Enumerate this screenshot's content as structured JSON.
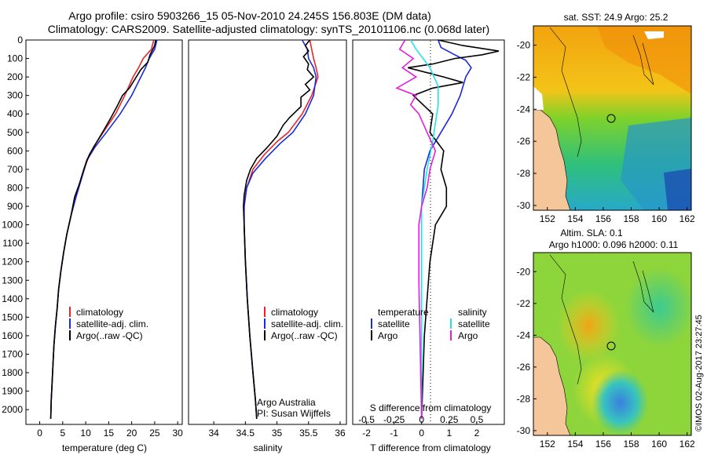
{
  "header": {
    "line1": "Argo profile: csiro 5903266_15 05-Nov-2010 24.245S 156.803E (DM data)",
    "line2": "Climatology: CARS2009. Satellite-adjusted climatology: synTS_20101106.nc (0.068d later)"
  },
  "colors": {
    "clim": "#e8242a",
    "sat": "#1c2bd8",
    "argo": "#000000",
    "sal_sat": "#22e3e8",
    "sal_argo": "#e61ce0"
  },
  "chart_data": [
    {
      "id": "temperature",
      "type": "line",
      "xlabel": "temperature (deg C)",
      "ylabel": "",
      "xlim": [
        -3,
        31
      ],
      "ylim": [
        2080,
        0
      ],
      "xticks": [
        0,
        5,
        10,
        15,
        20,
        25,
        30
      ],
      "yticks": [
        0,
        100,
        200,
        300,
        400,
        500,
        600,
        700,
        800,
        900,
        1000,
        1100,
        1200,
        1300,
        1400,
        1500,
        1600,
        1700,
        1800,
        1900,
        2000
      ],
      "legend": [
        "climatology",
        "satellite-adj. clim.",
        "Argo(..raw -QC)"
      ],
      "series": [
        {
          "name": "climatology",
          "color": "clim",
          "points": [
            [
              24.8,
              0
            ],
            [
              24.3,
              50
            ],
            [
              22.5,
              100
            ],
            [
              21.5,
              150
            ],
            [
              20.3,
              200
            ],
            [
              18.5,
              300
            ],
            [
              16.5,
              400
            ],
            [
              13.8,
              500
            ],
            [
              11.7,
              580
            ],
            [
              10.2,
              650
            ],
            [
              9.0,
              750
            ],
            [
              7.8,
              850
            ],
            [
              6.8,
              950
            ],
            [
              5.9,
              1050
            ],
            [
              5.2,
              1150
            ],
            [
              4.6,
              1250
            ],
            [
              4.1,
              1350
            ],
            [
              3.8,
              1450
            ],
            [
              3.4,
              1550
            ],
            [
              3.1,
              1650
            ],
            [
              2.9,
              1750
            ],
            [
              2.7,
              1850
            ],
            [
              2.5,
              1950
            ],
            [
              2.4,
              2050
            ]
          ]
        },
        {
          "name": "satellite-adj. clim.",
          "color": "sat",
          "points": [
            [
              25.5,
              0
            ],
            [
              25.0,
              50
            ],
            [
              23.8,
              100
            ],
            [
              23.0,
              150
            ],
            [
              22.0,
              200
            ],
            [
              20.0,
              300
            ],
            [
              17.5,
              400
            ],
            [
              14.5,
              500
            ],
            [
              12.0,
              580
            ],
            [
              10.3,
              650
            ],
            [
              9.1,
              750
            ],
            [
              7.9,
              850
            ],
            [
              6.8,
              950
            ],
            [
              5.9,
              1050
            ],
            [
              5.2,
              1150
            ],
            [
              4.6,
              1250
            ],
            [
              4.1,
              1350
            ],
            [
              3.8,
              1450
            ],
            [
              3.4,
              1550
            ],
            [
              3.1,
              1650
            ],
            [
              2.9,
              1750
            ],
            [
              2.7,
              1850
            ],
            [
              2.5,
              1950
            ],
            [
              2.4,
              2050
            ]
          ]
        },
        {
          "name": "Argo(..raw -QC)",
          "color": "argo",
          "points": [
            [
              25.2,
              0
            ],
            [
              25.0,
              30
            ],
            [
              24.0,
              80
            ],
            [
              23.5,
              120
            ],
            [
              22.0,
              160
            ],
            [
              21.0,
              200
            ],
            [
              19.5,
              260
            ],
            [
              18.0,
              300
            ],
            [
              16.8,
              360
            ],
            [
              15.5,
              420
            ],
            [
              13.9,
              490
            ],
            [
              12.2,
              560
            ],
            [
              10.8,
              620
            ],
            [
              9.6,
              700
            ],
            [
              8.6,
              780
            ],
            [
              7.6,
              850
            ],
            [
              6.8,
              950
            ],
            [
              5.9,
              1050
            ],
            [
              5.2,
              1150
            ],
            [
              4.6,
              1250
            ],
            [
              4.1,
              1350
            ],
            [
              3.8,
              1450
            ],
            [
              3.4,
              1550
            ],
            [
              3.1,
              1650
            ],
            [
              2.9,
              1750
            ],
            [
              2.7,
              1850
            ],
            [
              2.5,
              1950
            ],
            [
              2.4,
              2050
            ]
          ]
        }
      ]
    },
    {
      "id": "salinity",
      "type": "line",
      "xlabel": "salinity",
      "ylabel": "",
      "xlim": [
        33.6,
        36.1
      ],
      "ylim": [
        2080,
        0
      ],
      "xticks": [
        34,
        34.5,
        35,
        35.5,
        36
      ],
      "legend": [
        "climatology",
        "satellite-adj. clim.",
        "Argo(..raw -QC)"
      ],
      "annotation": [
        "Argo Australia",
        "PI: Susan Wijffels"
      ],
      "series": [
        {
          "name": "climatology",
          "color": "clim",
          "points": [
            [
              35.52,
              0
            ],
            [
              35.55,
              50
            ],
            [
              35.58,
              100
            ],
            [
              35.62,
              150
            ],
            [
              35.65,
              200
            ],
            [
              35.55,
              300
            ],
            [
              35.4,
              400
            ],
            [
              35.18,
              500
            ],
            [
              35.0,
              550
            ],
            [
              34.8,
              620
            ],
            [
              34.62,
              700
            ],
            [
              34.52,
              800
            ],
            [
              34.48,
              900
            ],
            [
              34.48,
              1000
            ],
            [
              34.5,
              1200
            ],
            [
              34.53,
              1400
            ],
            [
              34.57,
              1600
            ],
            [
              34.62,
              1800
            ],
            [
              34.66,
              1950
            ],
            [
              34.68,
              2050
            ]
          ]
        },
        {
          "name": "satellite-adj. clim.",
          "color": "sat",
          "points": [
            [
              35.4,
              0
            ],
            [
              35.48,
              50
            ],
            [
              35.5,
              100
            ],
            [
              35.58,
              150
            ],
            [
              35.62,
              200
            ],
            [
              35.58,
              300
            ],
            [
              35.45,
              400
            ],
            [
              35.25,
              500
            ],
            [
              35.05,
              560
            ],
            [
              34.82,
              640
            ],
            [
              34.62,
              720
            ],
            [
              34.52,
              800
            ],
            [
              34.48,
              900
            ],
            [
              34.48,
              1000
            ],
            [
              34.5,
              1200
            ],
            [
              34.53,
              1400
            ],
            [
              34.57,
              1600
            ],
            [
              34.62,
              1800
            ],
            [
              34.66,
              1950
            ],
            [
              34.68,
              2050
            ]
          ]
        },
        {
          "name": "Argo(..raw -QC)",
          "color": "argo",
          "points": [
            [
              35.52,
              0
            ],
            [
              35.45,
              30
            ],
            [
              35.5,
              60
            ],
            [
              35.42,
              90
            ],
            [
              35.5,
              130
            ],
            [
              35.48,
              160
            ],
            [
              35.58,
              200
            ],
            [
              35.45,
              240
            ],
            [
              35.52,
              270
            ],
            [
              35.38,
              310
            ],
            [
              35.38,
              360
            ],
            [
              35.2,
              420
            ],
            [
              35.1,
              460
            ],
            [
              35.0,
              520
            ],
            [
              34.85,
              580
            ],
            [
              34.68,
              640
            ],
            [
              34.58,
              700
            ],
            [
              34.52,
              760
            ],
            [
              34.48,
              840
            ],
            [
              34.47,
              900
            ],
            [
              34.48,
              1000
            ],
            [
              34.5,
              1200
            ],
            [
              34.53,
              1400
            ],
            [
              34.57,
              1600
            ],
            [
              34.62,
              1800
            ],
            [
              34.66,
              1950
            ],
            [
              34.68,
              2050
            ]
          ]
        }
      ]
    },
    {
      "id": "difference",
      "type": "line",
      "xlabel": "T difference from climatology",
      "top_xlabel": "S difference from climatology",
      "xlim": [
        -2.5,
        3.0
      ],
      "ylim": [
        2080,
        0
      ],
      "xticks": [
        -2,
        -1,
        0,
        1,
        2
      ],
      "top_ticks": [
        "-0.5",
        "-0.25",
        "0",
        "0.25",
        "0.5"
      ],
      "top_tick_positions": [
        -2,
        -1,
        0,
        1,
        2
      ],
      "legend_temperature": [
        "temperature",
        "satellite",
        "Argo"
      ],
      "legend_salinity": [
        "salinity",
        "satellite",
        "Argo"
      ],
      "series": [
        {
          "name": "T satellite",
          "color": "sat",
          "points": [
            [
              0.6,
              0
            ],
            [
              0.7,
              40
            ],
            [
              1.2,
              80
            ],
            [
              1.6,
              110
            ],
            [
              1.8,
              150
            ],
            [
              1.6,
              200
            ],
            [
              1.4,
              300
            ],
            [
              1.1,
              400
            ],
            [
              0.7,
              500
            ],
            [
              0.3,
              600
            ],
            [
              0.1,
              700
            ],
            [
              0.0,
              900
            ],
            [
              0.0,
              2050
            ]
          ]
        },
        {
          "name": "T Argo",
          "color": "argo",
          "points": [
            [
              0.6,
              0
            ],
            [
              1.5,
              30
            ],
            [
              2.8,
              60
            ],
            [
              2.2,
              80
            ],
            [
              1.2,
              100
            ],
            [
              0.4,
              130
            ],
            [
              -0.5,
              150
            ],
            [
              0.8,
              200
            ],
            [
              1.5,
              230
            ],
            [
              0.4,
              260
            ],
            [
              -0.3,
              300
            ],
            [
              0.4,
              400
            ],
            [
              0.3,
              500
            ],
            [
              0.6,
              560
            ],
            [
              0.8,
              600
            ],
            [
              0.7,
              700
            ],
            [
              0.9,
              800
            ],
            [
              0.9,
              900
            ],
            [
              0.5,
              1000
            ],
            [
              0.3,
              1200
            ],
            [
              0.2,
              1400
            ],
            [
              0.1,
              1600
            ],
            [
              0.0,
              2050
            ]
          ]
        },
        {
          "name": "S satellite",
          "color": "sal_sat",
          "points": [
            [
              -0.4,
              0
            ],
            [
              -0.2,
              50
            ],
            [
              0.3,
              150
            ],
            [
              0.6,
              250
            ],
            [
              0.6,
              350
            ],
            [
              0.5,
              450
            ],
            [
              0.4,
              550
            ],
            [
              0.2,
              700
            ],
            [
              0.0,
              900
            ],
            [
              0.0,
              2050
            ]
          ]
        },
        {
          "name": "S Argo",
          "color": "sal_argo",
          "points": [
            [
              -0.6,
              0
            ],
            [
              -0.8,
              50
            ],
            [
              -0.3,
              100
            ],
            [
              -0.7,
              150
            ],
            [
              -0.2,
              200
            ],
            [
              -0.9,
              260
            ],
            [
              -0.2,
              300
            ],
            [
              -0.4,
              350
            ],
            [
              -0.1,
              400
            ],
            [
              0.2,
              500
            ],
            [
              0.5,
              600
            ],
            [
              0.3,
              700
            ],
            [
              0.2,
              800
            ],
            [
              0.0,
              900
            ],
            [
              -0.1,
              1000
            ],
            [
              -0.1,
              1200
            ],
            [
              -0.1,
              1300
            ],
            [
              0.0,
              2050
            ]
          ]
        }
      ]
    },
    {
      "id": "sst_map",
      "type": "heatmap",
      "title": "sat. SST: 24.9 Argo: 25.2",
      "xlim": [
        151,
        162.3
      ],
      "ylim": [
        -30.3,
        -18.8
      ],
      "xticks": [
        152,
        154,
        156,
        158,
        160,
        162
      ],
      "yticks": [
        -20,
        -22,
        -24,
        -26,
        -28,
        -30
      ]
    },
    {
      "id": "sla_map",
      "type": "heatmap",
      "title": "Altim. SLA: 0.1",
      "subtitle": "Argo h1000: 0.096 h2000: 0.11",
      "xlim": [
        151,
        162.3
      ],
      "ylim": [
        -30.3,
        -18.8
      ],
      "xticks": [
        152,
        154,
        156,
        158,
        160,
        162
      ],
      "yticks": [
        -20,
        -22,
        -24,
        -26,
        -28,
        -30
      ]
    }
  ],
  "watermark": "©IMOS 02-Aug-2017 23:27:45"
}
